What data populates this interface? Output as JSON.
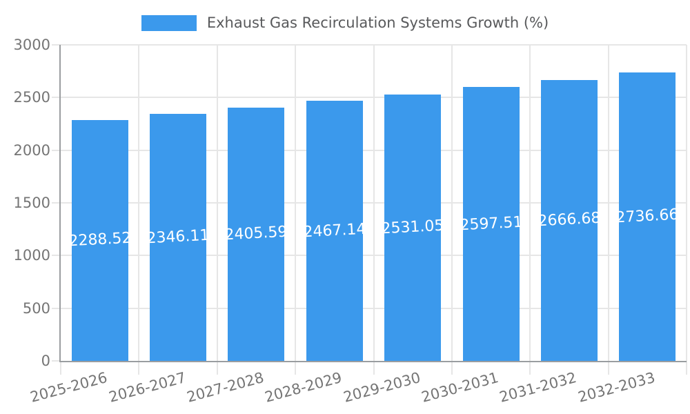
{
  "chart_data": {
    "type": "bar",
    "title": "Exhaust Gas Recirculation Systems Growth (%)",
    "categories": [
      "2025-2026",
      "2026-2027",
      "2027-2028",
      "2028-2029",
      "2029-2030",
      "2030-2031",
      "2031-2032",
      "2032-2033"
    ],
    "values": [
      2288.52,
      2346.11,
      2405.59,
      2467.14,
      2531.05,
      2597.51,
      2666.68,
      2736.66
    ],
    "value_labels": [
      "2288.52",
      "2346.11",
      "2405.59",
      "2467.14",
      "2531.05",
      "2597.51",
      "2666.68",
      "2736.66"
    ],
    "xlabel": "",
    "ylabel": "",
    "ylim": [
      0,
      3000
    ],
    "yticks": [
      0,
      500,
      1000,
      1500,
      2000,
      2500,
      3000
    ],
    "ytick_labels": [
      "0",
      "500",
      "1000",
      "1500",
      "2000",
      "2500",
      "3000"
    ],
    "grid": true,
    "legend_position": "top",
    "colors": {
      "bar": "#3B99EC",
      "grid": "#e6e6e6",
      "axis": "#9a9da0",
      "tick_label": "#757575",
      "title": "#58595b",
      "value_label": "#ffffff",
      "background": "#ffffff"
    }
  }
}
